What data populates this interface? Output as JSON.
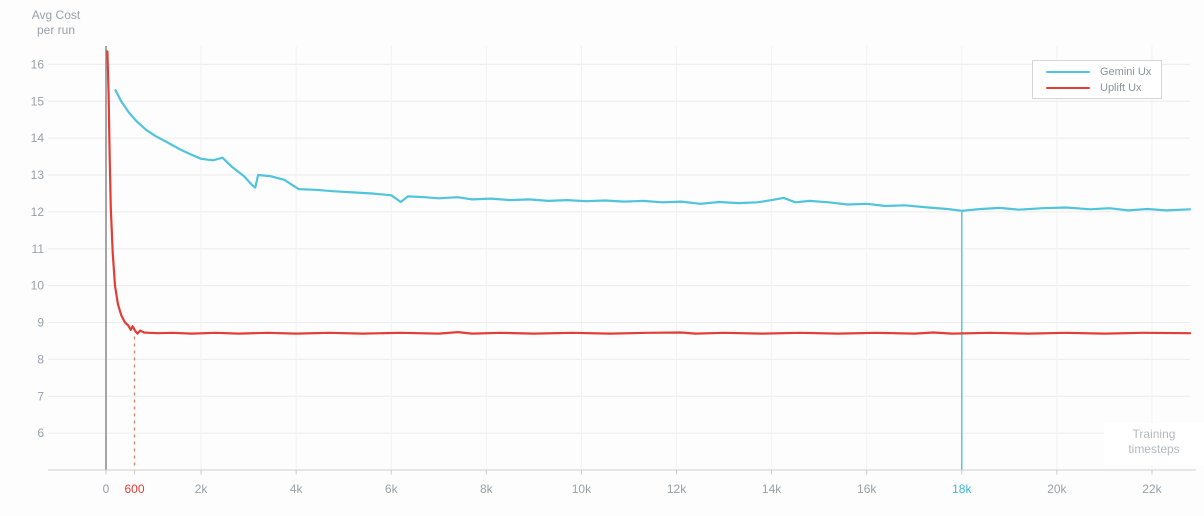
{
  "title": {
    "line1": "Avg Cost",
    "line2": "per run"
  },
  "x_axis_label": {
    "line1": "Training",
    "line2": "timesteps"
  },
  "legend": {
    "items": [
      {
        "label": "Gemini Ux",
        "color": "#4fc4da"
      },
      {
        "label": "Uplift Ux",
        "color": "#e23d36"
      }
    ]
  },
  "colors": {
    "grid": "#ececec",
    "grid_v": "#f2f2f2",
    "axis_y": "#8f8f8f",
    "axis_x": "#d0d0d0",
    "tick": "#c9c9c9",
    "tick_label": "#9aa0a6"
  },
  "chart_data": {
    "type": "line",
    "title": "Avg Cost per run",
    "xlabel": "Training timesteps",
    "ylabel": "Avg Cost per run",
    "xlim": [
      0,
      22800
    ],
    "ylim": [
      5,
      16.5
    ],
    "grid": true,
    "legend_position": "top-right",
    "y_ticks": [
      6,
      7,
      8,
      9,
      10,
      11,
      12,
      13,
      14,
      15,
      16
    ],
    "x_gridlines": [
      2000,
      4000,
      6000,
      8000,
      10000,
      12000,
      14000,
      16000,
      18000,
      20000,
      22000
    ],
    "x_ticks": [
      {
        "value": 0,
        "label": "0"
      },
      {
        "value": 600,
        "label": "600",
        "color": "#e23d36"
      },
      {
        "value": 2000,
        "label": "2k"
      },
      {
        "value": 4000,
        "label": "4k"
      },
      {
        "value": 6000,
        "label": "6k"
      },
      {
        "value": 8000,
        "label": "8k"
      },
      {
        "value": 10000,
        "label": "10k"
      },
      {
        "value": 12000,
        "label": "12k"
      },
      {
        "value": 14000,
        "label": "14k"
      },
      {
        "value": 16000,
        "label": "16k"
      },
      {
        "value": 18000,
        "label": "18k",
        "color": "#3db8d8"
      },
      {
        "value": 20000,
        "label": "20k"
      },
      {
        "value": 22000,
        "label": "22k"
      }
    ],
    "markers": [
      {
        "x": 600,
        "y_top": 8.62,
        "y_bottom": 5,
        "style": "dashed",
        "color": "#cc8570",
        "label": "600"
      },
      {
        "x": 18000,
        "y_top": 12.02,
        "y_bottom": 5,
        "style": "solid",
        "color": "#4fc4da",
        "label": "18k"
      }
    ],
    "series": [
      {
        "name": "Gemini Ux",
        "color": "#4fc4da",
        "points": [
          [
            200,
            15.3
          ],
          [
            320,
            15.0
          ],
          [
            480,
            14.7
          ],
          [
            650,
            14.45
          ],
          [
            850,
            14.22
          ],
          [
            1050,
            14.05
          ],
          [
            1300,
            13.88
          ],
          [
            1550,
            13.7
          ],
          [
            1800,
            13.55
          ],
          [
            2000,
            13.44
          ],
          [
            2250,
            13.4
          ],
          [
            2450,
            13.47
          ],
          [
            2650,
            13.22
          ],
          [
            2900,
            12.97
          ],
          [
            3080,
            12.72
          ],
          [
            3140,
            12.66
          ],
          [
            3200,
            13.0
          ],
          [
            3450,
            12.97
          ],
          [
            3750,
            12.87
          ],
          [
            4050,
            12.62
          ],
          [
            4400,
            12.6
          ],
          [
            4800,
            12.56
          ],
          [
            5200,
            12.53
          ],
          [
            5600,
            12.5
          ],
          [
            6000,
            12.45
          ],
          [
            6200,
            12.27
          ],
          [
            6350,
            12.42
          ],
          [
            6700,
            12.4
          ],
          [
            7000,
            12.37
          ],
          [
            7400,
            12.4
          ],
          [
            7700,
            12.34
          ],
          [
            8100,
            12.36
          ],
          [
            8500,
            12.32
          ],
          [
            8900,
            12.34
          ],
          [
            9300,
            12.3
          ],
          [
            9700,
            12.32
          ],
          [
            10100,
            12.29
          ],
          [
            10500,
            12.31
          ],
          [
            10900,
            12.28
          ],
          [
            11300,
            12.3
          ],
          [
            11700,
            12.26
          ],
          [
            12100,
            12.28
          ],
          [
            12500,
            12.22
          ],
          [
            12900,
            12.27
          ],
          [
            13300,
            12.24
          ],
          [
            13700,
            12.26
          ],
          [
            14000,
            12.32
          ],
          [
            14250,
            12.38
          ],
          [
            14500,
            12.26
          ],
          [
            14800,
            12.3
          ],
          [
            15200,
            12.26
          ],
          [
            15600,
            12.2
          ],
          [
            16000,
            12.22
          ],
          [
            16400,
            12.16
          ],
          [
            16800,
            12.18
          ],
          [
            17300,
            12.12
          ],
          [
            17700,
            12.08
          ],
          [
            18000,
            12.03
          ],
          [
            18400,
            12.08
          ],
          [
            18800,
            12.11
          ],
          [
            19200,
            12.06
          ],
          [
            19700,
            12.1
          ],
          [
            20200,
            12.12
          ],
          [
            20700,
            12.07
          ],
          [
            21100,
            12.1
          ],
          [
            21500,
            12.04
          ],
          [
            21900,
            12.08
          ],
          [
            22300,
            12.04
          ],
          [
            22800,
            12.07
          ]
        ]
      },
      {
        "name": "Uplift Ux",
        "color": "#e23d36",
        "points": [
          [
            30,
            16.35
          ],
          [
            55,
            15.2
          ],
          [
            75,
            13.6
          ],
          [
            100,
            12.1
          ],
          [
            140,
            10.9
          ],
          [
            190,
            10.0
          ],
          [
            250,
            9.5
          ],
          [
            320,
            9.2
          ],
          [
            400,
            9.0
          ],
          [
            470,
            8.92
          ],
          [
            520,
            8.8
          ],
          [
            560,
            8.9
          ],
          [
            610,
            8.78
          ],
          [
            660,
            8.7
          ],
          [
            720,
            8.78
          ],
          [
            800,
            8.73
          ],
          [
            900,
            8.72
          ],
          [
            1100,
            8.71
          ],
          [
            1400,
            8.72
          ],
          [
            1800,
            8.7
          ],
          [
            2300,
            8.72
          ],
          [
            2800,
            8.7
          ],
          [
            3400,
            8.72
          ],
          [
            4000,
            8.7
          ],
          [
            4700,
            8.72
          ],
          [
            5400,
            8.7
          ],
          [
            6200,
            8.72
          ],
          [
            7000,
            8.7
          ],
          [
            7400,
            8.74
          ],
          [
            7700,
            8.7
          ],
          [
            8300,
            8.72
          ],
          [
            9000,
            8.7
          ],
          [
            9800,
            8.72
          ],
          [
            10600,
            8.7
          ],
          [
            11400,
            8.72
          ],
          [
            12100,
            8.73
          ],
          [
            12400,
            8.7
          ],
          [
            13000,
            8.72
          ],
          [
            13800,
            8.7
          ],
          [
            14600,
            8.72
          ],
          [
            15400,
            8.7
          ],
          [
            16200,
            8.72
          ],
          [
            17000,
            8.7
          ],
          [
            17400,
            8.73
          ],
          [
            17800,
            8.7
          ],
          [
            18600,
            8.72
          ],
          [
            19400,
            8.7
          ],
          [
            20200,
            8.72
          ],
          [
            21000,
            8.7
          ],
          [
            21800,
            8.72
          ],
          [
            22800,
            8.71
          ]
        ]
      }
    ]
  }
}
